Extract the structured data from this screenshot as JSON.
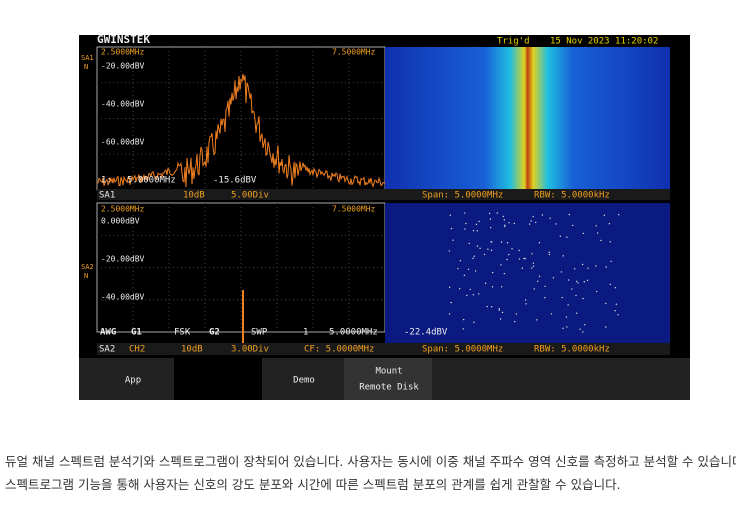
{
  "screen": {
    "brand": "GWINSTEK",
    "status": "Trig'd",
    "datetime": "15 Nov 2023 11:20:02",
    "upper": {
      "side_label": "SA1",
      "side_mode": "N",
      "start_freq": "2.5000MHz",
      "stop_freq": "7.5000MHz",
      "levels": [
        "-20.00dBV",
        "-40.00dBV",
        "-60.00dBV"
      ],
      "marker": "1:",
      "marker_freq": "5.0000MHz",
      "marker_level": "-15.6dBV",
      "bar": [
        "SA1",
        "10dB",
        "5.00Div",
        "Span: 5.0000MHz",
        "RBW: 5.0000kHz"
      ]
    },
    "lower": {
      "side_label": "SA2",
      "side_mode": "N",
      "start_freq": "2.5000MHz",
      "stop_freq": "7.5000MHz",
      "levels": [
        "0.000dBV",
        "-20.00dBV",
        "-40.00dBV"
      ],
      "awg": [
        "AWG",
        "G1",
        "FSK",
        "G2",
        "SWP"
      ],
      "marker": "1",
      "marker_freq": "5.0000MHz",
      "marker_level": "-22.4dBV",
      "bar": [
        "SA2",
        "CH2",
        "10dB",
        "3.00Div",
        "CF: 5.0000MHz",
        "Span: 5.0000MHz",
        "RBW: 5.0000kHz"
      ]
    },
    "softkeys": [
      "App",
      "Demo",
      "Mount",
      "Remote Disk"
    ]
  },
  "caption": [
    "듀얼 채널 스펙트럼 분석기와 스펙트로그램이 장착되어 있습니다. 사용자는 동시에 이중 채널 주파수 영역 신호를 측정하고 분석할 수 있습니다.",
    "스펙트로그램 기능을 통해 사용자는 신호의 강도 분포와 시간에 따른 스펙트럼 분포의 관계를 쉽게 관찰할 수 있습니다."
  ]
}
